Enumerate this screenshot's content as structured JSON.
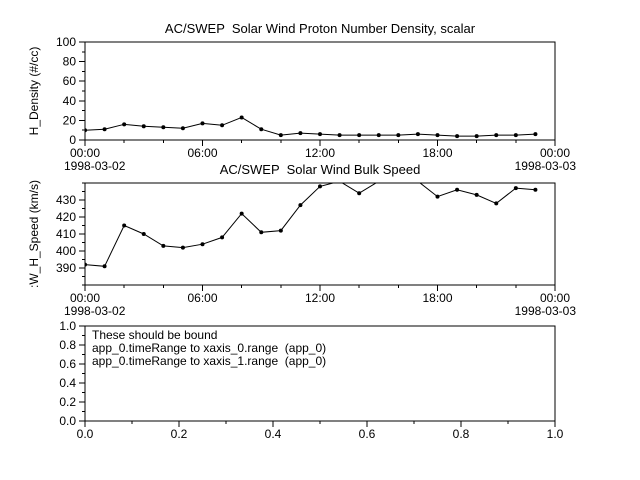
{
  "colors": {
    "background": "#ffffff",
    "foreground": "#000000"
  },
  "chart_data": [
    {
      "type": "line",
      "title": "AC/SWEP  Solar Wind Proton Number Density, scalar",
      "ylabel": "H_Density (#/cc)",
      "ylim": [
        0,
        100
      ],
      "yticks": [
        0,
        20,
        40,
        60,
        80,
        100
      ],
      "ytick_labels": [
        "0",
        "20",
        "40",
        "60",
        "80",
        "100"
      ],
      "xlim": [
        0,
        24
      ],
      "xticks": [
        0,
        6,
        12,
        18,
        24
      ],
      "xtick_labels": [
        "00:00",
        "06:00",
        "12:00",
        "18:00",
        "00:00"
      ],
      "xlabel_left": "1998-03-02",
      "xlabel_right": "1998-03-03",
      "x_hours": [
        0,
        1,
        2,
        3,
        4,
        5,
        6,
        7,
        8,
        9,
        10,
        11,
        12,
        13,
        14,
        15,
        16,
        17,
        18,
        19,
        20,
        21,
        22,
        23
      ],
      "values": [
        10,
        11,
        16,
        14,
        13,
        12,
        17,
        15,
        23,
        11,
        5,
        7,
        6,
        5,
        5,
        5,
        5,
        6,
        5,
        4,
        4,
        5,
        5,
        6
      ]
    },
    {
      "type": "line",
      "title": "AC/SWEP  Solar Wind Bulk Speed",
      "ylabel": ":W_H_Speed (km/s)",
      "ylim": [
        380,
        440
      ],
      "yticks": [
        390,
        400,
        410,
        420,
        430
      ],
      "ytick_labels": [
        "390",
        "400",
        "410",
        "420",
        "430"
      ],
      "xlim": [
        0,
        24
      ],
      "xticks": [
        0,
        6,
        12,
        18,
        24
      ],
      "xtick_labels": [
        "00:00",
        "06:00",
        "12:00",
        "18:00",
        "00:00"
      ],
      "xlabel_left": "1998-03-02",
      "xlabel_right": "1998-03-03",
      "x_hours": [
        0,
        1,
        2,
        3,
        4,
        5,
        6,
        7,
        8,
        9,
        10,
        11,
        12,
        13,
        14,
        15,
        16,
        17,
        18,
        19,
        20,
        21,
        22,
        23
      ],
      "values": [
        392,
        391,
        415,
        410,
        403,
        402,
        404,
        408,
        422,
        411,
        412,
        427,
        438,
        441,
        434,
        441,
        442,
        441,
        432,
        436,
        433,
        428,
        437,
        436
      ]
    },
    {
      "type": "empty",
      "title": "",
      "ylabel": "",
      "ylim": [
        0,
        1
      ],
      "yticks": [
        0,
        0.2,
        0.4,
        0.6,
        0.8,
        1
      ],
      "ytick_labels": [
        "0.0",
        "0.2",
        "0.4",
        "0.6",
        "0.8",
        "1.0"
      ],
      "xlim": [
        0,
        1
      ],
      "xticks": [
        0,
        0.2,
        0.4,
        0.6,
        0.8,
        1
      ],
      "xtick_labels": [
        "0.0",
        "0.2",
        "0.4",
        "0.6",
        "0.8",
        "1.0"
      ],
      "annotations": [
        "These should be bound",
        "app_0.timeRange to xaxis_0.range  (app_0)",
        "app_0.timeRange to xaxis_1.range  (app_0)"
      ]
    }
  ]
}
